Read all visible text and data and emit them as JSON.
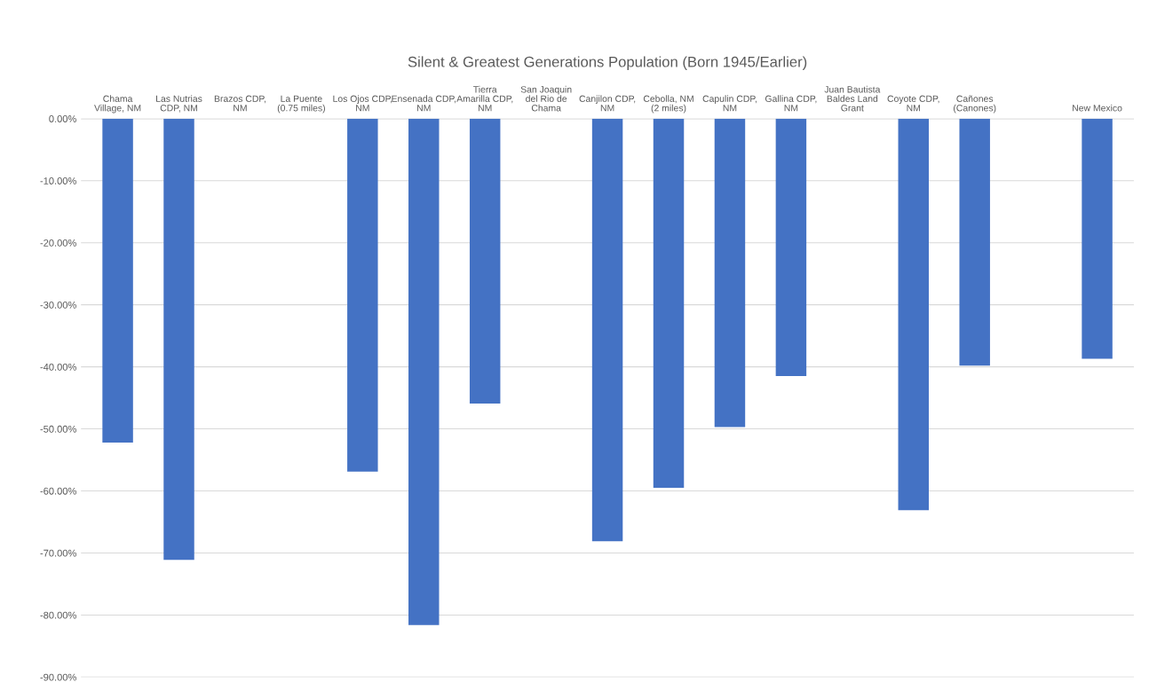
{
  "chart_data": {
    "type": "bar",
    "title": "Silent & Greatest Generations Population (Born 1945/Earlier)",
    "categories": [
      "Chama Village, NM",
      "Las Nutrias CDP, NM",
      "Brazos CDP, NM",
      "La Puente (0.75 miles)",
      "Los Ojos CDP, NM",
      "Ensenada CDP, NM",
      "Tierra Amarilla CDP, NM",
      "San Joaquin del Rio de Chama",
      "Canjilon CDP, NM",
      "Cebolla, NM (2 miles)",
      "Capulin CDP, NM",
      "Gallina CDP, NM",
      "Juan Bautista Baldes Land Grant",
      "Coyote CDP, NM",
      "Cañones (Canones)",
      null,
      "New Mexico"
    ],
    "values": [
      -52.2,
      -71.1,
      null,
      null,
      -56.9,
      -81.6,
      -45.9,
      null,
      -68.1,
      -59.5,
      -49.7,
      -41.5,
      null,
      -63.1,
      -39.8,
      null,
      -38.7
    ],
    "color": "#4472c4",
    "ylim": [
      -90,
      0
    ],
    "yticks": [
      {
        "value": 0,
        "label": "0.00%"
      },
      {
        "value": -10,
        "label": "-10.00%"
      },
      {
        "value": -20,
        "label": "-20.00%"
      },
      {
        "value": -30,
        "label": "-30.00%"
      },
      {
        "value": -40,
        "label": "-40.00%"
      },
      {
        "value": -50,
        "label": "-50.00%"
      },
      {
        "value": -60,
        "label": "-60.00%"
      },
      {
        "value": -70,
        "label": "-70.00%"
      },
      {
        "value": -80,
        "label": "-80.00%"
      },
      {
        "value": -90,
        "label": "-90.00%"
      }
    ],
    "grid": "y"
  }
}
